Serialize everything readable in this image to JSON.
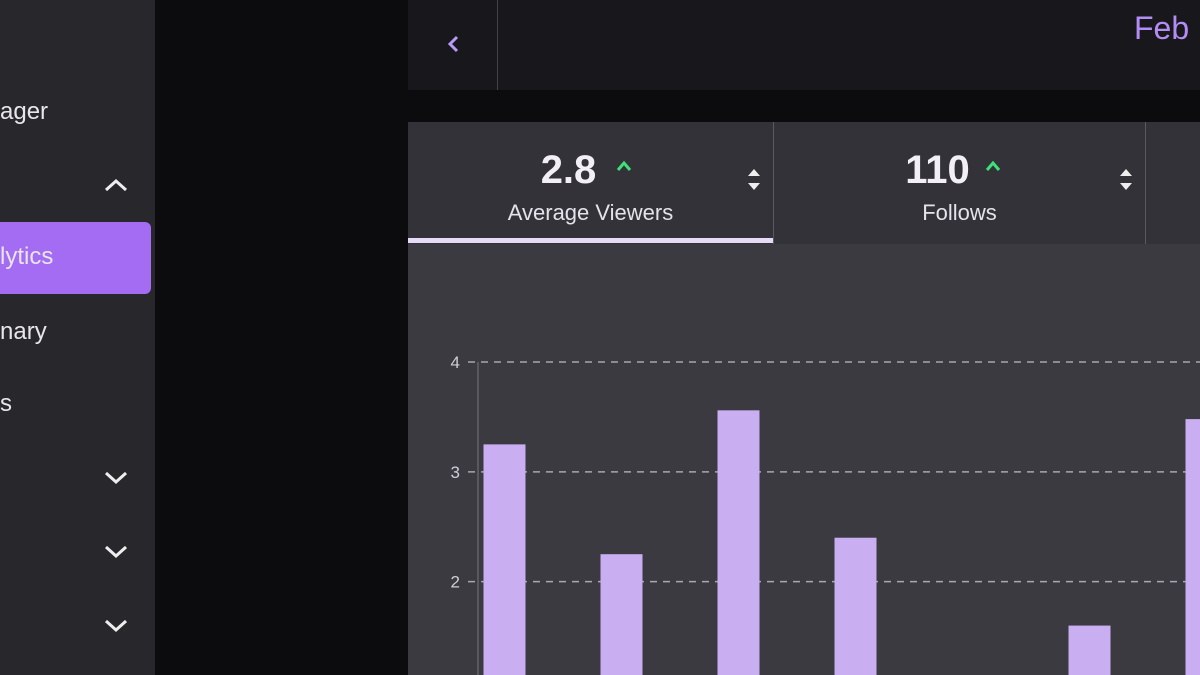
{
  "sidebar": {
    "items": [
      "ager",
      "lytics",
      "nary",
      "s"
    ]
  },
  "header": {
    "date": "Feb"
  },
  "stats": [
    {
      "value": 2.8,
      "label": "Average Viewers"
    },
    {
      "value": 110,
      "label": "Follows"
    }
  ],
  "chart_data": {
    "type": "bar",
    "categories": [
      null,
      null,
      null,
      null,
      null,
      null,
      null
    ],
    "values": [
      3.25,
      2.25,
      3.56,
      2.4,
      null,
      1.6,
      3.48
    ],
    "color": "#c9aef2",
    "ylim": [
      1.15,
      4
    ],
    "yticks": [
      2,
      3,
      4
    ],
    "grid": true
  }
}
